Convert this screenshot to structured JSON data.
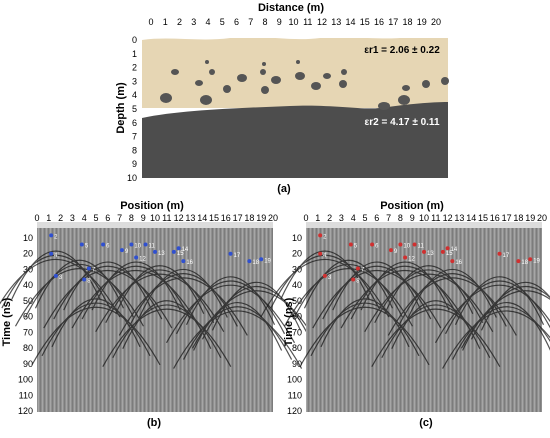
{
  "panel_a": {
    "top_label": "Distance (m)",
    "side_label": "Depth (m)",
    "caption": "(a)",
    "x_ticks": [
      "0",
      "1",
      "2",
      "3",
      "4",
      "5",
      "6",
      "7",
      "8",
      "9",
      "10",
      "11",
      "12",
      "13",
      "14",
      "15",
      "16",
      "17",
      "18",
      "19",
      "20"
    ],
    "y_ticks": [
      "0",
      "1",
      "2",
      "3",
      "4",
      "5",
      "6",
      "7",
      "8",
      "9",
      "10"
    ],
    "eps1": "εr1 = 2.06 ± 0.22",
    "eps2": "εr2 = 4.17 ± 0.11",
    "colors": {
      "upper_layer": "#e6d6b4",
      "lower_layer": "#4a4a4a",
      "stones": "#555555"
    }
  },
  "panel_b": {
    "top_label": "Position (m)",
    "side_label": "Time (ns)",
    "caption": "(b)",
    "x_ticks": [
      "0",
      "1",
      "2",
      "3",
      "4",
      "5",
      "6",
      "7",
      "8",
      "9",
      "10",
      "11",
      "12",
      "13",
      "14",
      "15",
      "16",
      "17",
      "18",
      "19",
      "20"
    ],
    "y_ticks": [
      "10",
      "20",
      "30",
      "40",
      "50",
      "60",
      "70",
      "80",
      "90",
      "100",
      "110",
      "120"
    ],
    "marker_color": "#3050d0",
    "markers": [
      "2",
      "3",
      "4",
      "5",
      "6",
      "7",
      "8",
      "9",
      "10",
      "11",
      "12",
      "13",
      "14",
      "15",
      "16",
      "17",
      "18",
      "19"
    ]
  },
  "panel_c": {
    "top_label": "Position (m)",
    "side_label": "Time (ns)",
    "caption": "(c)",
    "x_ticks": [
      "0",
      "1",
      "2",
      "3",
      "4",
      "5",
      "6",
      "7",
      "8",
      "9",
      "10",
      "11",
      "12",
      "13",
      "14",
      "15",
      "16",
      "17",
      "18",
      "19",
      "20"
    ],
    "y_ticks": [
      "10",
      "20",
      "30",
      "40",
      "50",
      "60",
      "70",
      "80",
      "90",
      "100",
      "110",
      "120"
    ],
    "marker_color": "#d03030",
    "markers": [
      "2",
      "3",
      "4",
      "5",
      "6",
      "7",
      "8",
      "9",
      "10",
      "11",
      "12",
      "13",
      "14",
      "15",
      "16",
      "17",
      "18",
      "19"
    ]
  }
}
